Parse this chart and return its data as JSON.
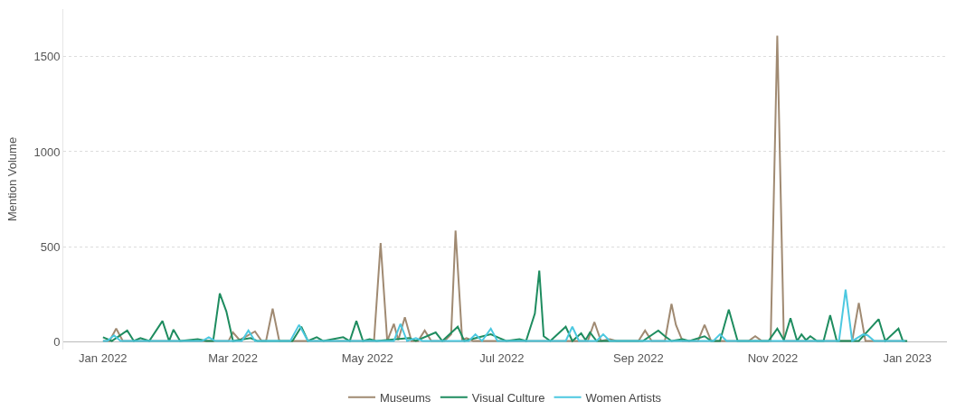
{
  "chart_data": {
    "type": "line",
    "ylabel": "Mention Volume",
    "xlim": [
      "2021-12-14",
      "2023-01-19"
    ],
    "xticks": [
      {
        "value": "2022-01-01",
        "label": "Jan 2022"
      },
      {
        "value": "2022-03-01",
        "label": "Mar 2022"
      },
      {
        "value": "2022-05-01",
        "label": "May 2022"
      },
      {
        "value": "2022-07-01",
        "label": "Jul 2022"
      },
      {
        "value": "2022-09-01",
        "label": "Sep 2022"
      },
      {
        "value": "2022-11-01",
        "label": "Nov 2022"
      },
      {
        "value": "2023-01-01",
        "label": "Jan 2023"
      }
    ],
    "ylim": [
      -40,
      1750
    ],
    "yticks": [
      0,
      500,
      1000,
      1500
    ],
    "grid": "y",
    "legend": "bottom",
    "marker": "none",
    "line_style": "solid",
    "series": [
      {
        "name": "Museums",
        "color": "#a08a72",
        "x": [
          "2022-01-01",
          "2022-01-04",
          "2022-01-07",
          "2022-01-10",
          "2022-02-27",
          "2022-03-01",
          "2022-03-04",
          "2022-03-11",
          "2022-03-14",
          "2022-03-16",
          "2022-03-19",
          "2022-03-22",
          "2022-04-30",
          "2022-05-04",
          "2022-05-07",
          "2022-05-10",
          "2022-05-13",
          "2022-05-15",
          "2022-05-18",
          "2022-05-21",
          "2022-05-24",
          "2022-05-27",
          "2022-05-30",
          "2022-06-05",
          "2022-06-08",
          "2022-06-10",
          "2022-06-13",
          "2022-06-15",
          "2022-06-18",
          "2022-08-09",
          "2022-08-12",
          "2022-08-15",
          "2022-08-19",
          "2022-08-22",
          "2022-09-01",
          "2022-09-04",
          "2022-09-07",
          "2022-09-13",
          "2022-09-16",
          "2022-09-18",
          "2022-09-21",
          "2022-09-28",
          "2022-10-01",
          "2022-10-04",
          "2022-10-21",
          "2022-10-24",
          "2022-10-27",
          "2022-10-31",
          "2022-11-03",
          "2022-11-06",
          "2022-12-07",
          "2022-12-10",
          "2022-12-13",
          "2022-12-31"
        ],
        "values": [
          5,
          5,
          70,
          5,
          5,
          50,
          10,
          55,
          5,
          5,
          175,
          5,
          5,
          5,
          520,
          5,
          95,
          10,
          130,
          5,
          5,
          60,
          5,
          5,
          40,
          585,
          10,
          20,
          5,
          5,
          105,
          5,
          15,
          5,
          5,
          60,
          5,
          5,
          200,
          90,
          5,
          5,
          90,
          5,
          5,
          30,
          5,
          5,
          1610,
          5,
          5,
          205,
          5,
          5
        ]
      },
      {
        "name": "Visual Culture",
        "color": "#1e8c5f",
        "x": [
          "2022-01-01",
          "2022-01-05",
          "2022-01-12",
          "2022-01-15",
          "2022-01-18",
          "2022-01-22",
          "2022-01-28",
          "2022-01-31",
          "2022-02-02",
          "2022-02-05",
          "2022-02-13",
          "2022-02-17",
          "2022-02-20",
          "2022-02-23",
          "2022-02-26",
          "2022-03-01",
          "2022-03-09",
          "2022-03-12",
          "2022-03-28",
          "2022-04-01",
          "2022-04-04",
          "2022-04-08",
          "2022-04-11",
          "2022-04-20",
          "2022-04-23",
          "2022-04-26",
          "2022-04-29",
          "2022-05-02",
          "2022-05-05",
          "2022-05-20",
          "2022-05-23",
          "2022-06-01",
          "2022-06-04",
          "2022-06-11",
          "2022-06-14",
          "2022-06-26",
          "2022-06-30",
          "2022-07-03",
          "2022-07-09",
          "2022-07-12",
          "2022-07-16",
          "2022-07-18",
          "2022-07-20",
          "2022-07-23",
          "2022-07-30",
          "2022-08-02",
          "2022-08-06",
          "2022-08-08",
          "2022-08-10",
          "2022-08-13",
          "2022-09-03",
          "2022-09-10",
          "2022-09-13",
          "2022-09-16",
          "2022-09-21",
          "2022-09-24",
          "2022-10-01",
          "2022-10-04",
          "2022-10-08",
          "2022-10-12",
          "2022-10-16",
          "2022-10-30",
          "2022-11-03",
          "2022-11-06",
          "2022-11-09",
          "2022-11-12",
          "2022-11-14",
          "2022-11-16",
          "2022-11-18",
          "2022-11-21",
          "2022-11-24",
          "2022-11-27",
          "2022-11-30",
          "2022-12-10",
          "2022-12-19",
          "2022-12-22",
          "2022-12-28",
          "2022-12-30",
          "2023-01-01"
        ],
        "values": [
          25,
          5,
          60,
          5,
          20,
          5,
          110,
          5,
          65,
          5,
          15,
          5,
          5,
          255,
          160,
          5,
          20,
          5,
          5,
          80,
          5,
          25,
          5,
          25,
          5,
          110,
          5,
          15,
          5,
          20,
          5,
          50,
          5,
          80,
          5,
          40,
          20,
          5,
          15,
          5,
          150,
          375,
          30,
          5,
          80,
          5,
          45,
          10,
          50,
          5,
          5,
          60,
          30,
          5,
          15,
          5,
          30,
          5,
          5,
          170,
          5,
          5,
          70,
          10,
          125,
          5,
          40,
          10,
          30,
          5,
          5,
          140,
          5,
          5,
          120,
          5,
          70,
          5,
          5
        ]
      },
      {
        "name": "Women Artists",
        "color": "#4cc8e0",
        "x": [
          "2022-01-01",
          "2022-01-03",
          "2022-01-06",
          "2022-01-09",
          "2022-02-15",
          "2022-02-18",
          "2022-02-21",
          "2022-03-05",
          "2022-03-08",
          "2022-03-11",
          "2022-03-27",
          "2022-03-31",
          "2022-04-04",
          "2022-05-08",
          "2022-05-13",
          "2022-05-16",
          "2022-05-19",
          "2022-05-23",
          "2022-05-26",
          "2022-06-16",
          "2022-06-19",
          "2022-06-22",
          "2022-06-26",
          "2022-06-29",
          "2022-07-30",
          "2022-08-02",
          "2022-08-05",
          "2022-08-13",
          "2022-08-16",
          "2022-08-19",
          "2022-10-05",
          "2022-10-08",
          "2022-10-11",
          "2022-12-01",
          "2022-12-04",
          "2022-12-07",
          "2022-12-12",
          "2022-12-14",
          "2022-12-17",
          "2022-12-31"
        ],
        "values": [
          5,
          5,
          35,
          5,
          5,
          25,
          5,
          5,
          60,
          5,
          5,
          90,
          5,
          5,
          5,
          95,
          5,
          20,
          5,
          5,
          40,
          5,
          70,
          5,
          5,
          80,
          5,
          5,
          40,
          5,
          5,
          40,
          5,
          5,
          275,
          5,
          40,
          35,
          5,
          5
        ]
      }
    ]
  }
}
